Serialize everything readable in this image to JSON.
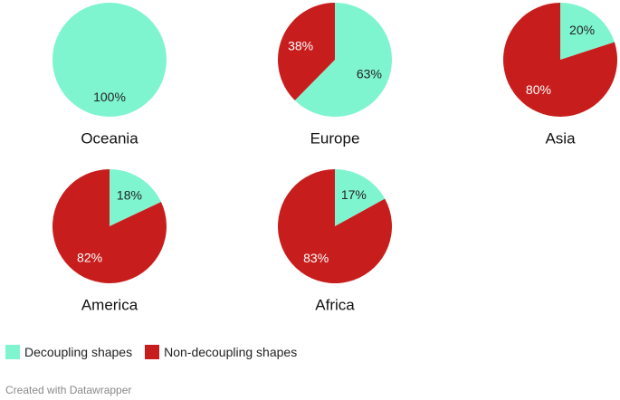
{
  "chart_data": {
    "type": "pie",
    "series": [
      {
        "name": "Decoupling shapes"
      },
      {
        "name": "Non-decoupling shapes"
      }
    ],
    "colors": {
      "decoupling": "#7ff5cf",
      "non_decoupling": "#c71e1d"
    },
    "legend_position": "bottom-left",
    "charts": [
      {
        "title": "Oceania",
        "decoupling": 100,
        "non_decoupling": 0,
        "decoupling_label": "100%",
        "non_decoupling_label": ""
      },
      {
        "title": "Europe",
        "decoupling": 63,
        "non_decoupling": 38,
        "decoupling_label": "63%",
        "non_decoupling_label": "38%"
      },
      {
        "title": "Asia",
        "decoupling": 20,
        "non_decoupling": 80,
        "decoupling_label": "20%",
        "non_decoupling_label": "80%"
      },
      {
        "title": "America",
        "decoupling": 18,
        "non_decoupling": 82,
        "decoupling_label": "18%",
        "non_decoupling_label": "82%"
      },
      {
        "title": "Africa",
        "decoupling": 17,
        "non_decoupling": 83,
        "decoupling_label": "17%",
        "non_decoupling_label": "83%"
      }
    ]
  },
  "footer": {
    "credit": "Created with Datawrapper"
  }
}
